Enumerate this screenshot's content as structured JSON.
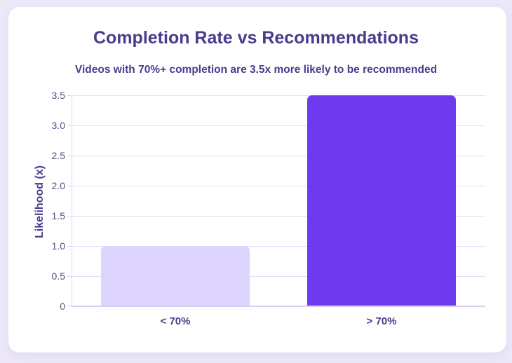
{
  "chart_data": {
    "type": "bar",
    "title": "Completion Rate vs Recommendations",
    "subtitle": "Videos with 70%+ completion are 3.5x more likely to be recommended",
    "categories": [
      "< 70%",
      "> 70%"
    ],
    "values": [
      1.0,
      3.5
    ],
    "xlabel": "",
    "ylabel": "Likelihood (x)",
    "ylim": [
      0,
      3.5
    ],
    "yticks": [
      "0",
      "0.5",
      "1.0",
      "1.5",
      "2.0",
      "2.5",
      "3.0",
      "3.5"
    ],
    "grid": true,
    "legend": null,
    "colors": [
      "#dcd4fc",
      "#6d3af0"
    ]
  },
  "colors": {
    "background": "#ece8f8",
    "card": "#ffffff",
    "text": "#4c3a8c",
    "grid": "#e2dcf5"
  }
}
